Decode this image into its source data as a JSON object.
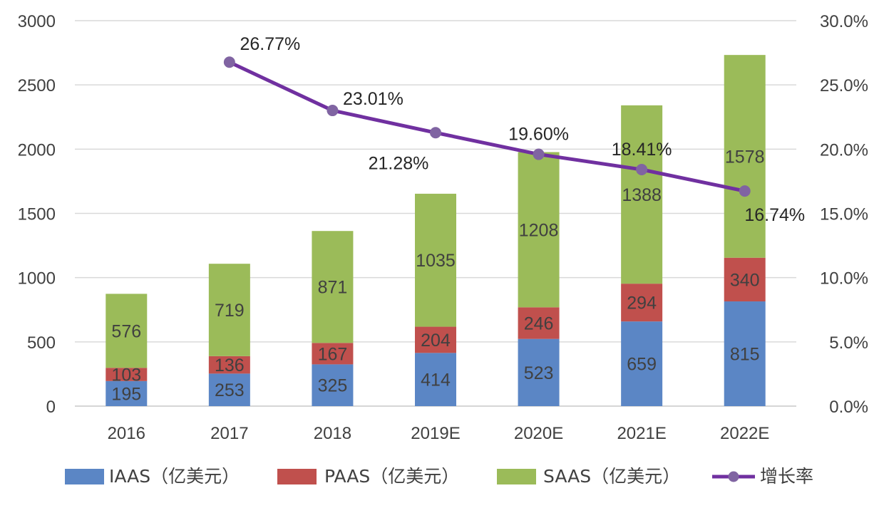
{
  "chart_data": {
    "type": "bar",
    "stacked": true,
    "title": "",
    "xlabel": "",
    "ylabel": "",
    "categories": [
      "2016",
      "2017",
      "2018",
      "2019E",
      "2020E",
      "2021E",
      "2022E"
    ],
    "ylim": [
      0,
      3000
    ],
    "yticks": [
      0,
      500,
      1000,
      1500,
      2000,
      2500,
      3000
    ],
    "y2lim": [
      0,
      30
    ],
    "y2ticks": [
      "0.0%",
      "5.0%",
      "10.0%",
      "15.0%",
      "20.0%",
      "25.0%",
      "30.0%"
    ],
    "grid": true,
    "legend_position": "bottom",
    "series": [
      {
        "name": "IAAS（亿美元）",
        "type": "bar",
        "color": "#5B86C5",
        "values": [
          195,
          253,
          325,
          414,
          523,
          659,
          815
        ]
      },
      {
        "name": "PAAS（亿美元）",
        "type": "bar",
        "color": "#C0504D",
        "values": [
          103,
          136,
          167,
          204,
          246,
          294,
          340
        ]
      },
      {
        "name": "SAAS（亿美元）",
        "type": "bar",
        "color": "#9BBB59",
        "values": [
          576,
          719,
          871,
          1035,
          1208,
          1388,
          1578
        ]
      },
      {
        "name": "增长率",
        "type": "line",
        "axis": "right",
        "color": "#7030A0",
        "marker_color": "#8064A2",
        "values": [
          null,
          26.77,
          23.01,
          21.28,
          19.6,
          18.41,
          16.74
        ],
        "labels": [
          null,
          "26.77%",
          "23.01%",
          "21.28%",
          "19.60%",
          "18.41%",
          "16.74%"
        ]
      }
    ]
  }
}
